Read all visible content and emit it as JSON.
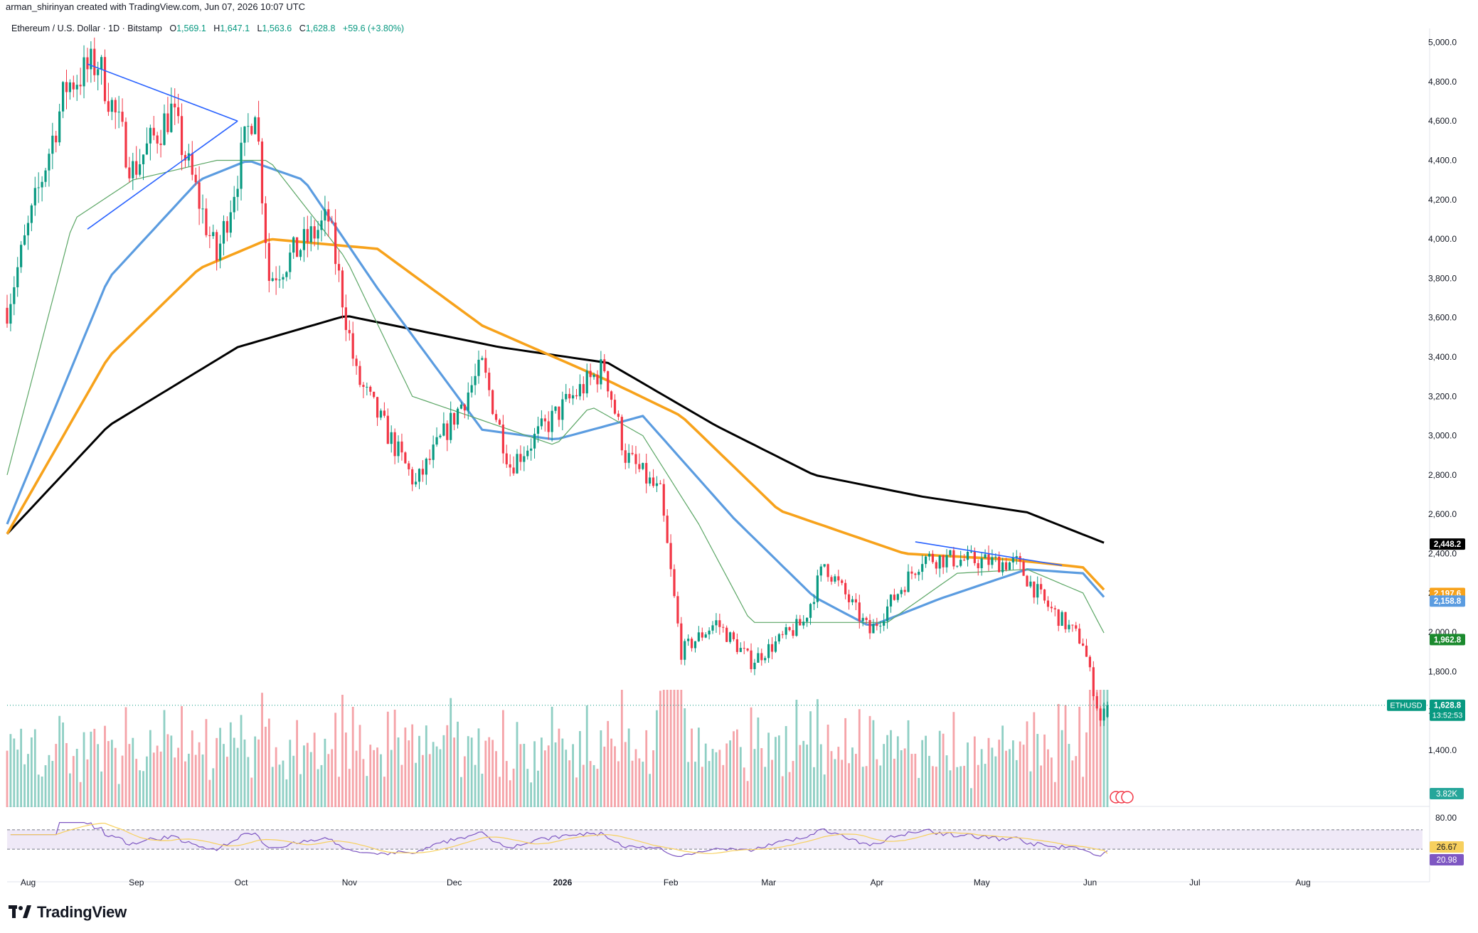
{
  "watermark": "arman_shirinyan created with TradingView.com, Jun 07, 2026 10:07 UTC",
  "legend": {
    "symbol": "Ethereum / U.S. Dollar · 1D · Bitstamp",
    "o_label": "O",
    "o_value": "1,569.1",
    "h_label": "H",
    "h_value": "1,647.1",
    "l_label": "L",
    "l_value": "1,563.6",
    "c_label": "C",
    "c_value": "1,628.8",
    "change": "+59.6 (+3.80%)"
  },
  "brand": {
    "name": "TradingView"
  },
  "colors": {
    "up": "#089981",
    "down": "#f23645",
    "vol_up": "#8fcfc4",
    "vol_down": "#f5a3a8",
    "sma_black": "#000000",
    "sma_orange": "#f7a21b",
    "sma_blue": "#5b9ce0",
    "sma_green": "#5ba665",
    "trendline": "#2962ff",
    "rsi": "#7e57c2",
    "rsi_ma": "#f7d05e"
  },
  "chart_data": {
    "type": "candlestick",
    "symbol": "ETHUSD",
    "timeframe": "1D",
    "exchange": "Bitstamp",
    "y_axis": {
      "ticks": [
        "5,000.0",
        "4,800.0",
        "4,600.0",
        "4,400.0",
        "4,200.0",
        "4,000.0",
        "3,800.0",
        "3,600.0",
        "3,400.0",
        "3,200.0",
        "3,000.0",
        "2,800.0",
        "2,600.0",
        "2,400.0",
        "2,200.0",
        "2,000.0",
        "1,800.0",
        "1,600.0",
        "1,400.0"
      ],
      "range": [
        1300,
        5050
      ]
    },
    "x_axis": {
      "ticks": [
        "Aug",
        "Sep",
        "Oct",
        "Nov",
        "Dec",
        "2026",
        "Feb",
        "Mar",
        "Apr",
        "May",
        "Jun",
        "Jul",
        "Aug"
      ]
    },
    "price_path": [
      [
        "2025-07-27",
        3650
      ],
      [
        "2025-08-13",
        4780
      ],
      [
        "2025-08-22",
        4900
      ],
      [
        "2025-09-01",
        4350
      ],
      [
        "2025-09-12",
        4650
      ],
      [
        "2025-09-25",
        3900
      ],
      [
        "2025-10-06",
        4700
      ],
      [
        "2025-10-10",
        3800
      ],
      [
        "2025-10-27",
        4100
      ],
      [
        "2025-11-04",
        3300
      ],
      [
        "2025-11-21",
        2750
      ],
      [
        "2025-12-10",
        3350
      ],
      [
        "2025-12-18",
        2850
      ],
      [
        "2026-01-05",
        3200
      ],
      [
        "2026-01-14",
        3350
      ],
      [
        "2026-01-20",
        2900
      ],
      [
        "2026-01-30",
        2700
      ],
      [
        "2026-02-05",
        1900
      ],
      [
        "2026-02-15",
        2050
      ],
      [
        "2026-02-25",
        1850
      ],
      [
        "2026-03-12",
        2050
      ],
      [
        "2026-03-18",
        2350
      ],
      [
        "2026-03-31",
        2000
      ],
      [
        "2026-04-15",
        2380
      ],
      [
        "2026-05-12",
        2350
      ],
      [
        "2026-05-20",
        2150
      ],
      [
        "2026-05-31",
        1950
      ],
      [
        "2026-06-05",
        1550
      ],
      [
        "2026-06-07",
        1628.8
      ]
    ],
    "last_bar": {
      "open": 1569.1,
      "high": 1647.1,
      "low": 1563.6,
      "close": 1628.8
    },
    "moving_averages": [
      {
        "color": "black",
        "last": 2448.2,
        "path": [
          [
            "2025-07-27",
            2500
          ],
          [
            "2025-08-25",
            3050
          ],
          [
            "2025-10-01",
            3450
          ],
          [
            "2025-11-01",
            3610
          ],
          [
            "2025-12-15",
            3450
          ],
          [
            "2026-01-15",
            3370
          ],
          [
            "2026-02-15",
            3050
          ],
          [
            "2026-03-15",
            2800
          ],
          [
            "2026-04-15",
            2690
          ],
          [
            "2026-05-15",
            2610
          ],
          [
            "2026-06-07",
            2448.2
          ]
        ]
      },
      {
        "color": "orange",
        "last": 2197.6,
        "path": [
          [
            "2025-07-27",
            2500
          ],
          [
            "2025-08-25",
            3400
          ],
          [
            "2025-09-20",
            3850
          ],
          [
            "2025-10-10",
            4000
          ],
          [
            "2025-11-10",
            3950
          ],
          [
            "2025-12-10",
            3560
          ],
          [
            "2026-01-15",
            3280
          ],
          [
            "2026-02-05",
            3100
          ],
          [
            "2026-03-05",
            2620
          ],
          [
            "2026-04-10",
            2400
          ],
          [
            "2026-05-10",
            2370
          ],
          [
            "2026-05-31",
            2330
          ],
          [
            "2026-06-07",
            2197.6
          ]
        ]
      },
      {
        "color": "blue",
        "last": 2158.8,
        "path": [
          [
            "2025-07-27",
            2550
          ],
          [
            "2025-08-25",
            3800
          ],
          [
            "2025-09-20",
            4300
          ],
          [
            "2025-10-04",
            4400
          ],
          [
            "2025-10-20",
            4300
          ],
          [
            "2025-11-10",
            3750
          ],
          [
            "2025-12-10",
            3030
          ],
          [
            "2025-12-31",
            2980
          ],
          [
            "2026-01-25",
            3100
          ],
          [
            "2026-02-20",
            2580
          ],
          [
            "2026-03-15",
            2180
          ],
          [
            "2026-03-31",
            2030
          ],
          [
            "2026-04-20",
            2170
          ],
          [
            "2026-05-15",
            2320
          ],
          [
            "2026-05-31",
            2300
          ],
          [
            "2026-06-07",
            2158.8
          ]
        ]
      },
      {
        "color": "green",
        "last": 1962.8,
        "path": [
          [
            "2025-07-27",
            2800
          ],
          [
            "2025-08-15",
            4100
          ],
          [
            "2025-09-01",
            4300
          ],
          [
            "2025-09-25",
            4400
          ],
          [
            "2025-10-10",
            4400
          ],
          [
            "2025-11-01",
            3900
          ],
          [
            "2025-11-20",
            3200
          ],
          [
            "2025-12-31",
            2950
          ],
          [
            "2026-01-10",
            3150
          ],
          [
            "2026-01-25",
            3000
          ],
          [
            "2026-02-10",
            2550
          ],
          [
            "2026-02-25",
            2050
          ],
          [
            "2026-03-15",
            2050
          ],
          [
            "2026-04-05",
            2050
          ],
          [
            "2026-04-25",
            2300
          ],
          [
            "2026-05-15",
            2320
          ],
          [
            "2026-05-31",
            2200
          ],
          [
            "2026-06-07",
            1962.8
          ]
        ]
      }
    ],
    "trendlines": [
      {
        "from": [
          "2025-08-19",
          4890
        ],
        "to": [
          "2025-10-01",
          4600
        ]
      },
      {
        "from": [
          "2025-08-19",
          4050
        ],
        "to": [
          "2025-10-01",
          4600
        ]
      },
      {
        "from": [
          "2026-04-13",
          2460
        ],
        "to": [
          "2026-05-25",
          2340
        ]
      }
    ],
    "price_labels": [
      {
        "text": "2,448.2",
        "value": 2448.2,
        "color": "#000000"
      },
      {
        "text": "2,197.6",
        "value": 2197.6,
        "color": "#f7a21b"
      },
      {
        "text": "2,158.8",
        "value": 2158.8,
        "color": "#5b9ce0"
      },
      {
        "text": "1,962.8",
        "value": 1962.8,
        "color": "#1b8a2e"
      }
    ],
    "current_price": {
      "symbol": "ETHUSD",
      "price": "1,628.8",
      "countdown": "13:52:53",
      "value": 1628.8
    },
    "volume": {
      "last_label": "3.82K"
    },
    "rsi": {
      "levels": [
        "80.00"
      ],
      "value": "26.67",
      "ma_value": "20.98"
    }
  }
}
